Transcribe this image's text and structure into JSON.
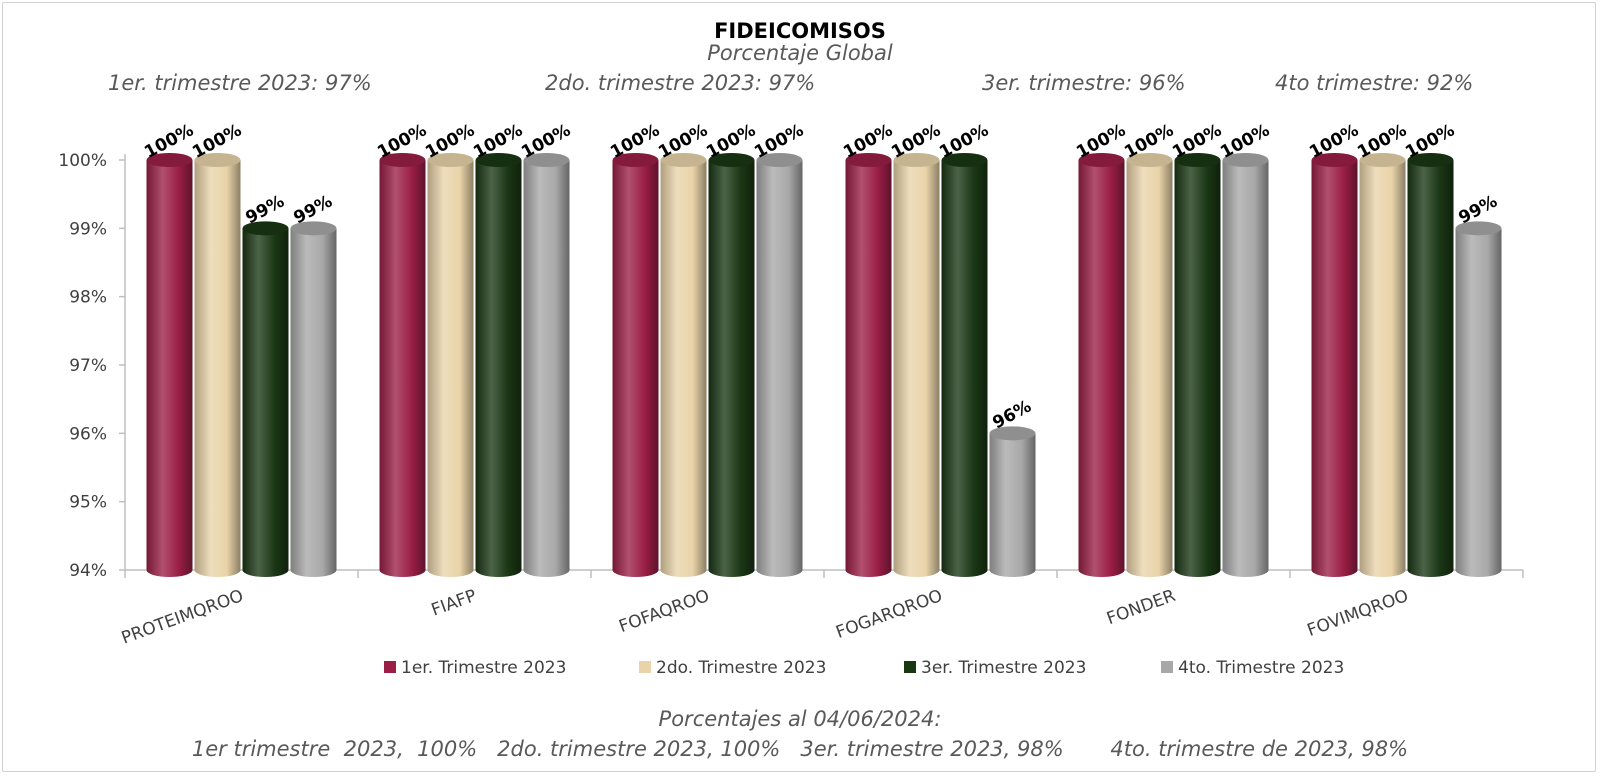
{
  "chart_data": {
    "type": "bar",
    "title": "FIDEICOMISOS",
    "subtitle": "Porcentaje Global",
    "quarter_notes": [
      "1er. trimestre 2023: 97%",
      "2do. trimestre 2023: 97%",
      "3er. trimestre: 96%",
      "4to trimestre: 92%"
    ],
    "categories": [
      "PROTEIMQROO",
      "FIAFP",
      "FOFAQROO",
      "FOGARQROO",
      "FONDER",
      "FOVIMQROO"
    ],
    "series": [
      {
        "name": "1er. Trimestre 2023",
        "color": "#9b1e47",
        "values": [
          100,
          100,
          100,
          100,
          100,
          100
        ],
        "labels": [
          "100%",
          "100%",
          "100%",
          "100%",
          "100%",
          "100%"
        ]
      },
      {
        "name": "2do. Trimestre 2023",
        "color": "#e9d3a9",
        "values": [
          100,
          100,
          100,
          100,
          100,
          100
        ],
        "labels": [
          "100%",
          "100%",
          "100%",
          "100%",
          "100%",
          "100%"
        ]
      },
      {
        "name": "3er. Trimestre 2023",
        "color": "#1a3714",
        "values": [
          99,
          100,
          100,
          100,
          100,
          100
        ],
        "labels": [
          "99%",
          "100%",
          "100%",
          "100%",
          "100%",
          "100%"
        ]
      },
      {
        "name": "4to. Trimestre 2023",
        "color": "#a8a8a8",
        "values": [
          99,
          100,
          100,
          96,
          100,
          99
        ],
        "labels": [
          "99%",
          "100%",
          "100%",
          "96%",
          "100%",
          "99%"
        ]
      }
    ],
    "yticks": [
      {
        "value": 94,
        "label": "94%"
      },
      {
        "value": 95,
        "label": "95%"
      },
      {
        "value": 96,
        "label": "96%"
      },
      {
        "value": 97,
        "label": "97%"
      },
      {
        "value": 98,
        "label": "98%"
      },
      {
        "value": 99,
        "label": "99%"
      },
      {
        "value": 100,
        "label": "100%"
      }
    ],
    "ylim": [
      94,
      100
    ],
    "grid": false,
    "legend_position": "bottom",
    "footer": [
      "Porcentajes al 04/06/2024:",
      "1er trimestre  2023,  100%   2do. trimestre 2023, 100%   3er. trimestre 2023, 98%       4to. trimestre de 2023, 98%"
    ]
  }
}
